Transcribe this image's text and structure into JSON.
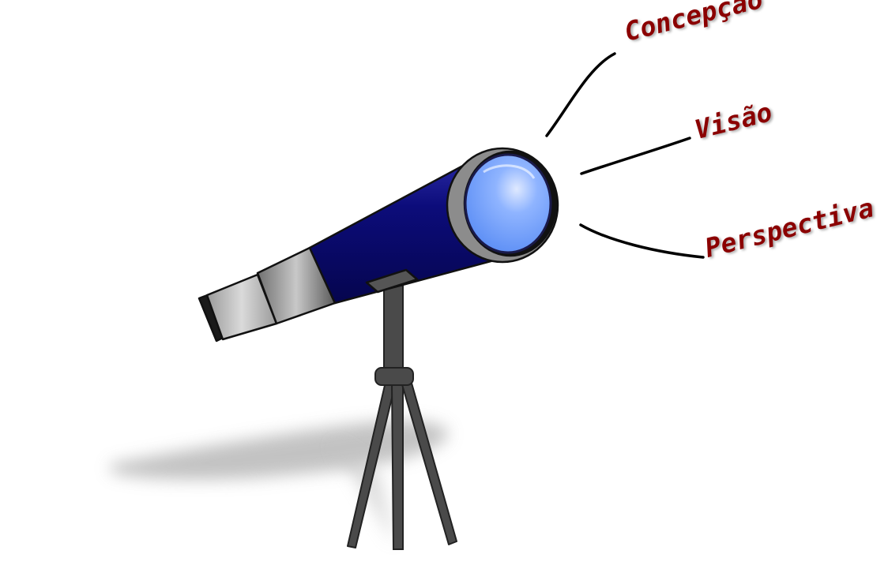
{
  "labels": {
    "concepcao": "Concepção",
    "visao": "Visão",
    "perspectiva": "Perspectiva"
  },
  "colors": {
    "label_text": "#8b0000",
    "tube_body": "#0a0a6e",
    "lens": "#6ea0ff",
    "lens_rim": "#8c8c8c",
    "eyepiece": "#a0a0a0",
    "tripod": "#4a4a4a",
    "shadow": "#b4b4b4"
  }
}
